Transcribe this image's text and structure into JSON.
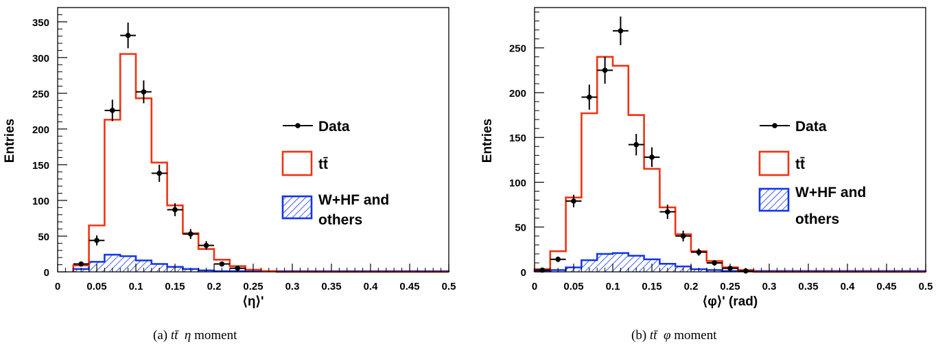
{
  "chart_data": [
    {
      "type": "histogram",
      "caption": "(a) tt̄  η moment",
      "xlabel": "⟨η⟩'",
      "ylabel": "Entries",
      "xlim": [
        0,
        0.5
      ],
      "ylim": [
        0,
        370
      ],
      "xticks": [
        0,
        0.05,
        0.1,
        0.15,
        0.2,
        0.25,
        0.3,
        0.35,
        0.4,
        0.45,
        0.5
      ],
      "xtick_labels": [
        "0",
        "0.05",
        "0.1",
        "0.15",
        "0.2",
        "0.25",
        "0.3",
        "0.35",
        "0.4",
        "0.45",
        "0.5"
      ],
      "yticks": [
        0,
        50,
        100,
        150,
        200,
        250,
        300,
        350
      ],
      "ytick_labels": [
        "0",
        "50",
        "100",
        "150",
        "200",
        "250",
        "300",
        "350"
      ],
      "bin_edges": [
        0.02,
        0.04,
        0.06,
        0.08,
        0.1,
        0.12,
        0.14,
        0.16,
        0.18,
        0.2,
        0.22,
        0.24,
        0.26,
        0.28,
        0.3,
        0.5
      ],
      "series": [
        {
          "name": "tt̄",
          "kind": "step",
          "color": "#ee3311",
          "values": [
            9,
            65,
            213,
            305,
            243,
            153,
            93,
            54,
            32,
            17,
            8,
            3,
            1,
            0,
            0
          ]
        },
        {
          "name": "W+HF and others",
          "kind": "hatched-step",
          "color": "#1133ee",
          "values": [
            4,
            14,
            24,
            22,
            16,
            11,
            7,
            4,
            2,
            1,
            1,
            1,
            1,
            1,
            1
          ]
        },
        {
          "name": "Data",
          "kind": "points",
          "color": "#000000",
          "x": [
            0.03,
            0.05,
            0.07,
            0.09,
            0.11,
            0.13,
            0.15,
            0.17,
            0.19,
            0.21,
            0.23
          ],
          "y": [
            11,
            44,
            226,
            331,
            252,
            138,
            87,
            53,
            37,
            11,
            5
          ],
          "yerr": [
            3,
            7,
            15,
            18,
            16,
            12,
            9,
            7,
            6,
            3,
            2
          ]
        }
      ],
      "legend": {
        "position": "right",
        "entries": [
          "Data",
          "tt̄",
          "W+HF and",
          "others"
        ]
      }
    },
    {
      "type": "histogram",
      "caption": "(b) tt̄  φ moment",
      "xlabel": "⟨φ⟩' (rad)",
      "ylabel": "Entries",
      "xlim": [
        0,
        0.5
      ],
      "ylim": [
        0,
        295
      ],
      "xticks": [
        0,
        0.05,
        0.1,
        0.15,
        0.2,
        0.25,
        0.3,
        0.35,
        0.4,
        0.45,
        0.5
      ],
      "xtick_labels": [
        "0",
        "0.05",
        "0.1",
        "0.15",
        "0.2",
        "0.25",
        "0.3",
        "0.35",
        "0.4",
        "0.45",
        "0.5"
      ],
      "yticks": [
        0,
        50,
        100,
        150,
        200,
        250
      ],
      "ytick_labels": [
        "0",
        "50",
        "100",
        "150",
        "200",
        "250"
      ],
      "bin_edges": [
        0.0,
        0.02,
        0.04,
        0.06,
        0.08,
        0.1,
        0.12,
        0.14,
        0.16,
        0.18,
        0.2,
        0.22,
        0.24,
        0.26,
        0.28,
        0.5
      ],
      "series": [
        {
          "name": "tt̄",
          "kind": "step",
          "color": "#ee3311",
          "values": [
            3,
            23,
            83,
            177,
            240,
            230,
            175,
            115,
            72,
            42,
            23,
            12,
            5,
            2,
            0
          ]
        },
        {
          "name": "W+HF and others",
          "kind": "hatched-step",
          "color": "#1133ee",
          "values": [
            1,
            2,
            5,
            13,
            20,
            21,
            18,
            14,
            9,
            6,
            3,
            2,
            1,
            1,
            1
          ]
        },
        {
          "name": "Data",
          "kind": "points",
          "color": "#000000",
          "x": [
            0.01,
            0.03,
            0.05,
            0.07,
            0.09,
            0.11,
            0.13,
            0.15,
            0.17,
            0.19,
            0.21,
            0.23,
            0.25,
            0.27
          ],
          "y": [
            2,
            14,
            79,
            195,
            225,
            269,
            142,
            128,
            67,
            40,
            22,
            10,
            4,
            1
          ],
          "yerr": [
            1,
            3,
            7,
            14,
            15,
            16,
            12,
            11,
            8,
            6,
            4,
            3,
            2,
            1
          ]
        }
      ],
      "legend": {
        "position": "right",
        "entries": [
          "Data",
          "tt̄",
          "W+HF and",
          "others"
        ]
      }
    }
  ]
}
